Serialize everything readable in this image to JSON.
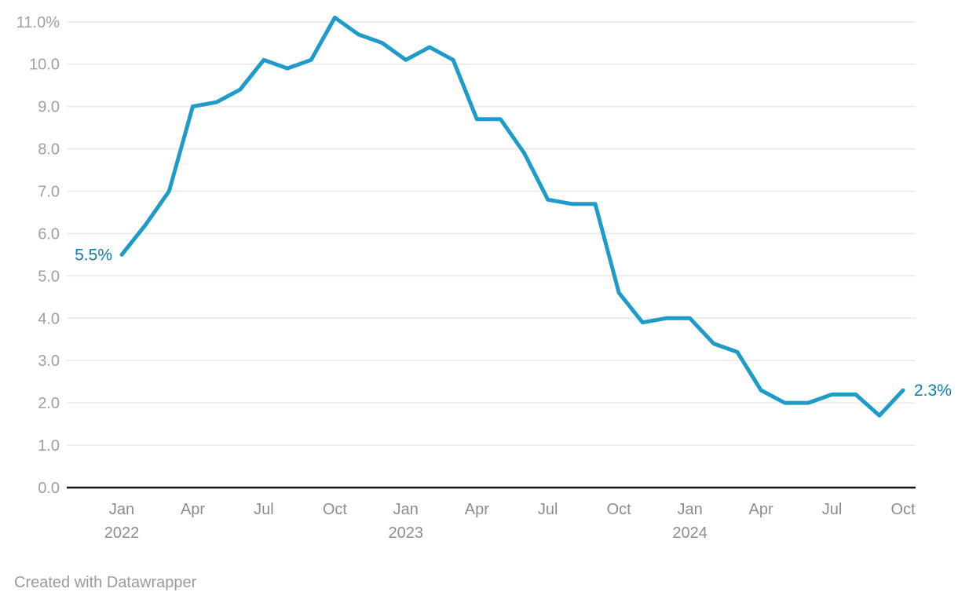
{
  "chart_data": {
    "type": "line",
    "unit": "%",
    "categories": [
      "Jan 2022",
      "Feb 2022",
      "Mar 2022",
      "Apr 2022",
      "May 2022",
      "Jun 2022",
      "Jul 2022",
      "Aug 2022",
      "Sep 2022",
      "Oct 2022",
      "Nov 2022",
      "Dec 2022",
      "Jan 2023",
      "Feb 2023",
      "Mar 2023",
      "Apr 2023",
      "May 2023",
      "Jun 2023",
      "Jul 2023",
      "Aug 2023",
      "Sep 2023",
      "Oct 2023",
      "Nov 2023",
      "Dec 2023",
      "Jan 2024",
      "Feb 2024",
      "Mar 2024",
      "Apr 2024",
      "May 2024",
      "Jun 2024",
      "Jul 2024",
      "Aug 2024",
      "Sep 2024",
      "Oct 2024"
    ],
    "values": [
      5.5,
      6.2,
      7.0,
      9.0,
      9.1,
      9.4,
      10.1,
      9.9,
      10.1,
      11.1,
      10.7,
      10.5,
      10.1,
      10.4,
      10.1,
      8.7,
      8.7,
      7.9,
      6.8,
      6.7,
      6.7,
      4.6,
      3.9,
      4.0,
      4.0,
      3.4,
      3.2,
      2.3,
      2.0,
      2.0,
      2.2,
      2.2,
      1.7,
      2.3
    ],
    "ylim": [
      0,
      11
    ],
    "grid": true,
    "legend": "none",
    "title": "",
    "xlabel": "",
    "ylabel": "",
    "y_ticks": [
      {
        "value": 0,
        "label": "0.0"
      },
      {
        "value": 1,
        "label": "1.0"
      },
      {
        "value": 2,
        "label": "2.0"
      },
      {
        "value": 3,
        "label": "3.0"
      },
      {
        "value": 4,
        "label": "4.0"
      },
      {
        "value": 5,
        "label": "5.0"
      },
      {
        "value": 6,
        "label": "6.0"
      },
      {
        "value": 7,
        "label": "7.0"
      },
      {
        "value": 8,
        "label": "8.0"
      },
      {
        "value": 9,
        "label": "9.0"
      },
      {
        "value": 10,
        "label": "10.0"
      },
      {
        "value": 11,
        "label": "11.0%"
      }
    ],
    "x_ticks": [
      {
        "index": 0,
        "label": "Jan",
        "year": "2022"
      },
      {
        "index": 3,
        "label": "Apr"
      },
      {
        "index": 6,
        "label": "Jul"
      },
      {
        "index": 9,
        "label": "Oct"
      },
      {
        "index": 12,
        "label": "Jan",
        "year": "2023"
      },
      {
        "index": 15,
        "label": "Apr"
      },
      {
        "index": 18,
        "label": "Jul"
      },
      {
        "index": 21,
        "label": "Oct"
      },
      {
        "index": 24,
        "label": "Jan",
        "year": "2024"
      },
      {
        "index": 27,
        "label": "Apr"
      },
      {
        "index": 30,
        "label": "Jul"
      },
      {
        "index": 33,
        "label": "Oct"
      }
    ],
    "annotations": {
      "start_label": "5.5%",
      "end_label": "2.3%"
    },
    "colors": {
      "line": "#1d9bc9",
      "value_label": "#0e7cad",
      "grid": "#e9e9e9",
      "axis": "#161616",
      "y_tick_text": "#a0a0a0",
      "x_tick_text": "#8d8d8d",
      "footer_text": "#9b9b9b",
      "background": "#ffffff"
    }
  },
  "footer": {
    "text": "Created with Datawrapper"
  }
}
